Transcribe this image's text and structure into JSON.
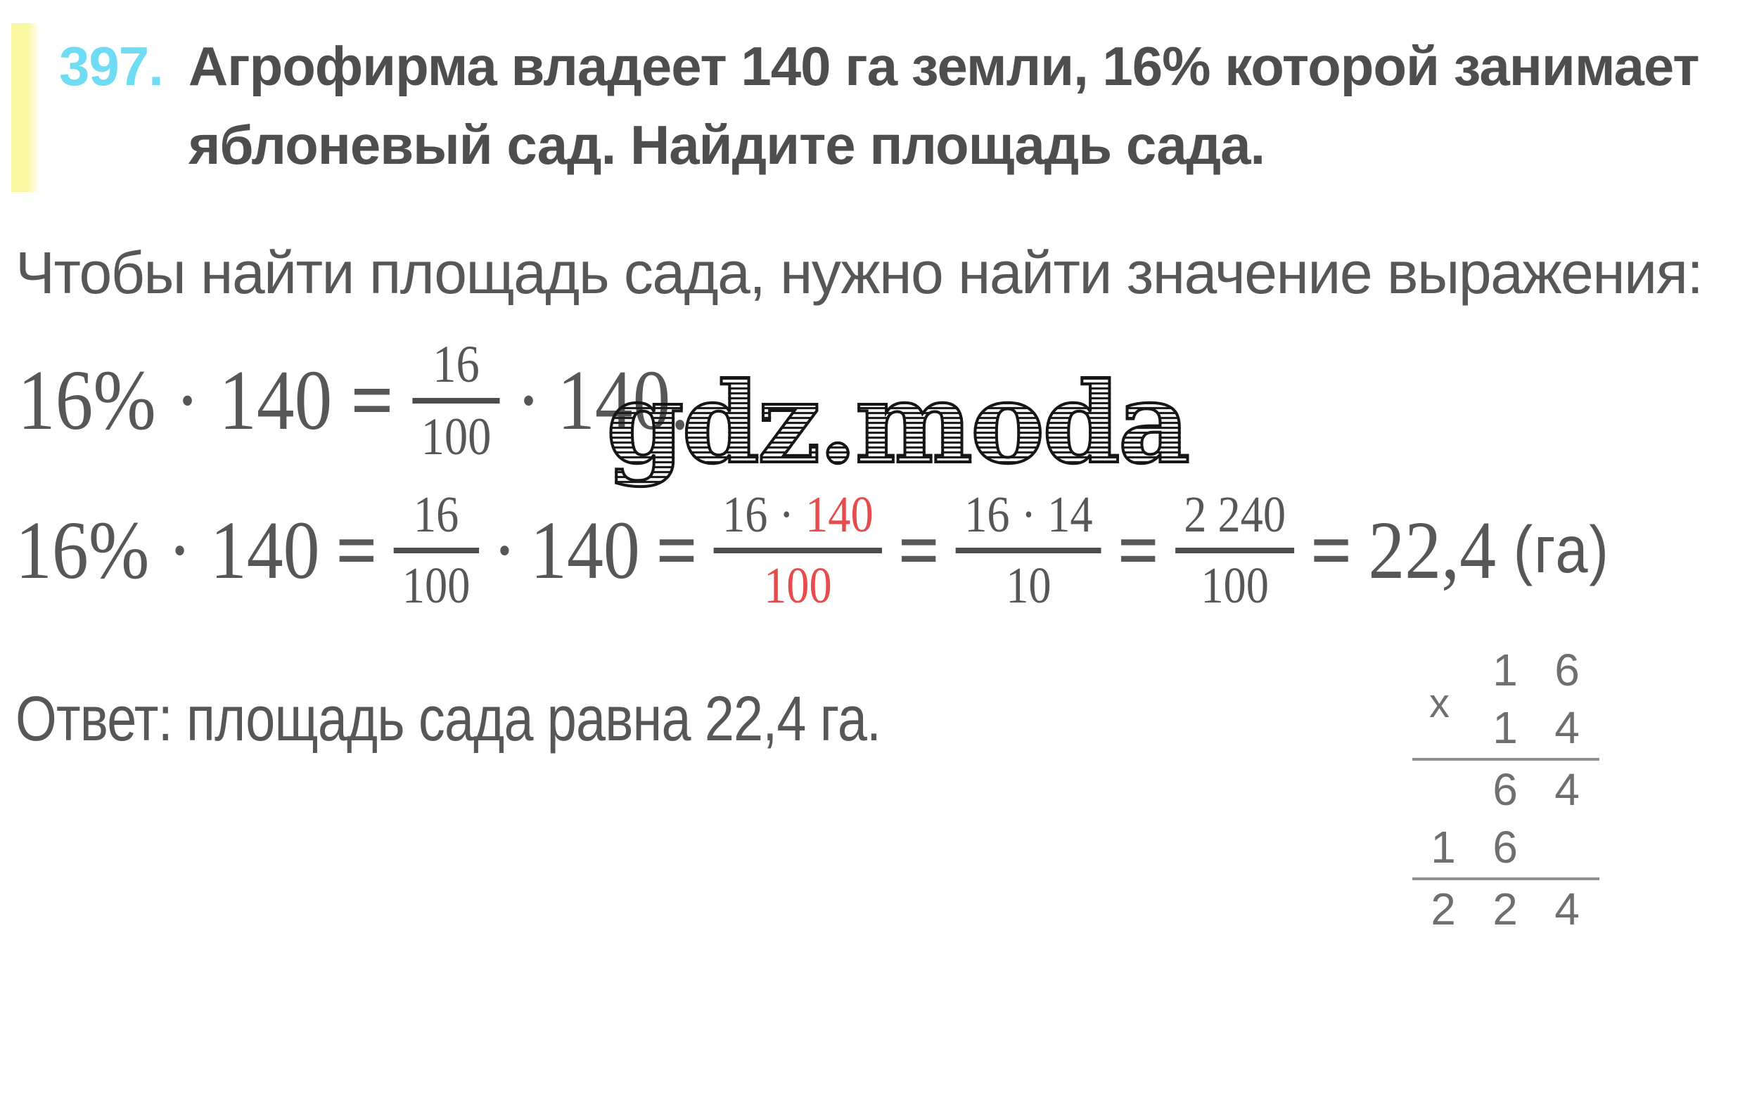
{
  "colors": {
    "accent_cyan": "#6fdcf4",
    "highlight_yellow": "#faf7a3",
    "red": "#e84b4b",
    "text": "#565759"
  },
  "problem": {
    "number": "397.",
    "lines": [
      "Агрофирма владеет 140 га земли, 16% которой занимает",
      "яблоневый сад. Найдите площадь сада."
    ]
  },
  "intro": "Чтобы найти площадь сада, нужно найти значение выражения:",
  "formula1": {
    "lhs": "16% · 140",
    "eq": "=",
    "frac": {
      "num": "16",
      "den": "100"
    },
    "dot": "·",
    "rhs": "140."
  },
  "watermark": "gdz.moda",
  "formula2": {
    "lhs": "16% · 140",
    "eq1": "=",
    "frac1": {
      "num": "16",
      "den": "100"
    },
    "dot": "·",
    "mult": "140",
    "eq2": "=",
    "frac2": {
      "num_gray": "16 · ",
      "num_red": "140",
      "den": "100"
    },
    "eq3": "=",
    "frac3": {
      "num": "16 · 14",
      "den": "10"
    },
    "eq4": "=",
    "frac4": {
      "num": "2 240",
      "den": "100"
    },
    "eq5": "=",
    "result": "22,4",
    "unit": "(га)"
  },
  "answer": "Ответ: площадь сада равна 22,4 га.",
  "long_multiplication": {
    "sign": "x",
    "rows": [
      [
        "",
        "1",
        "6"
      ],
      [
        "",
        "1",
        "4"
      ],
      [
        "",
        "6",
        "4"
      ],
      [
        "1",
        "6",
        ""
      ],
      [
        "2",
        "2",
        "4"
      ]
    ]
  }
}
